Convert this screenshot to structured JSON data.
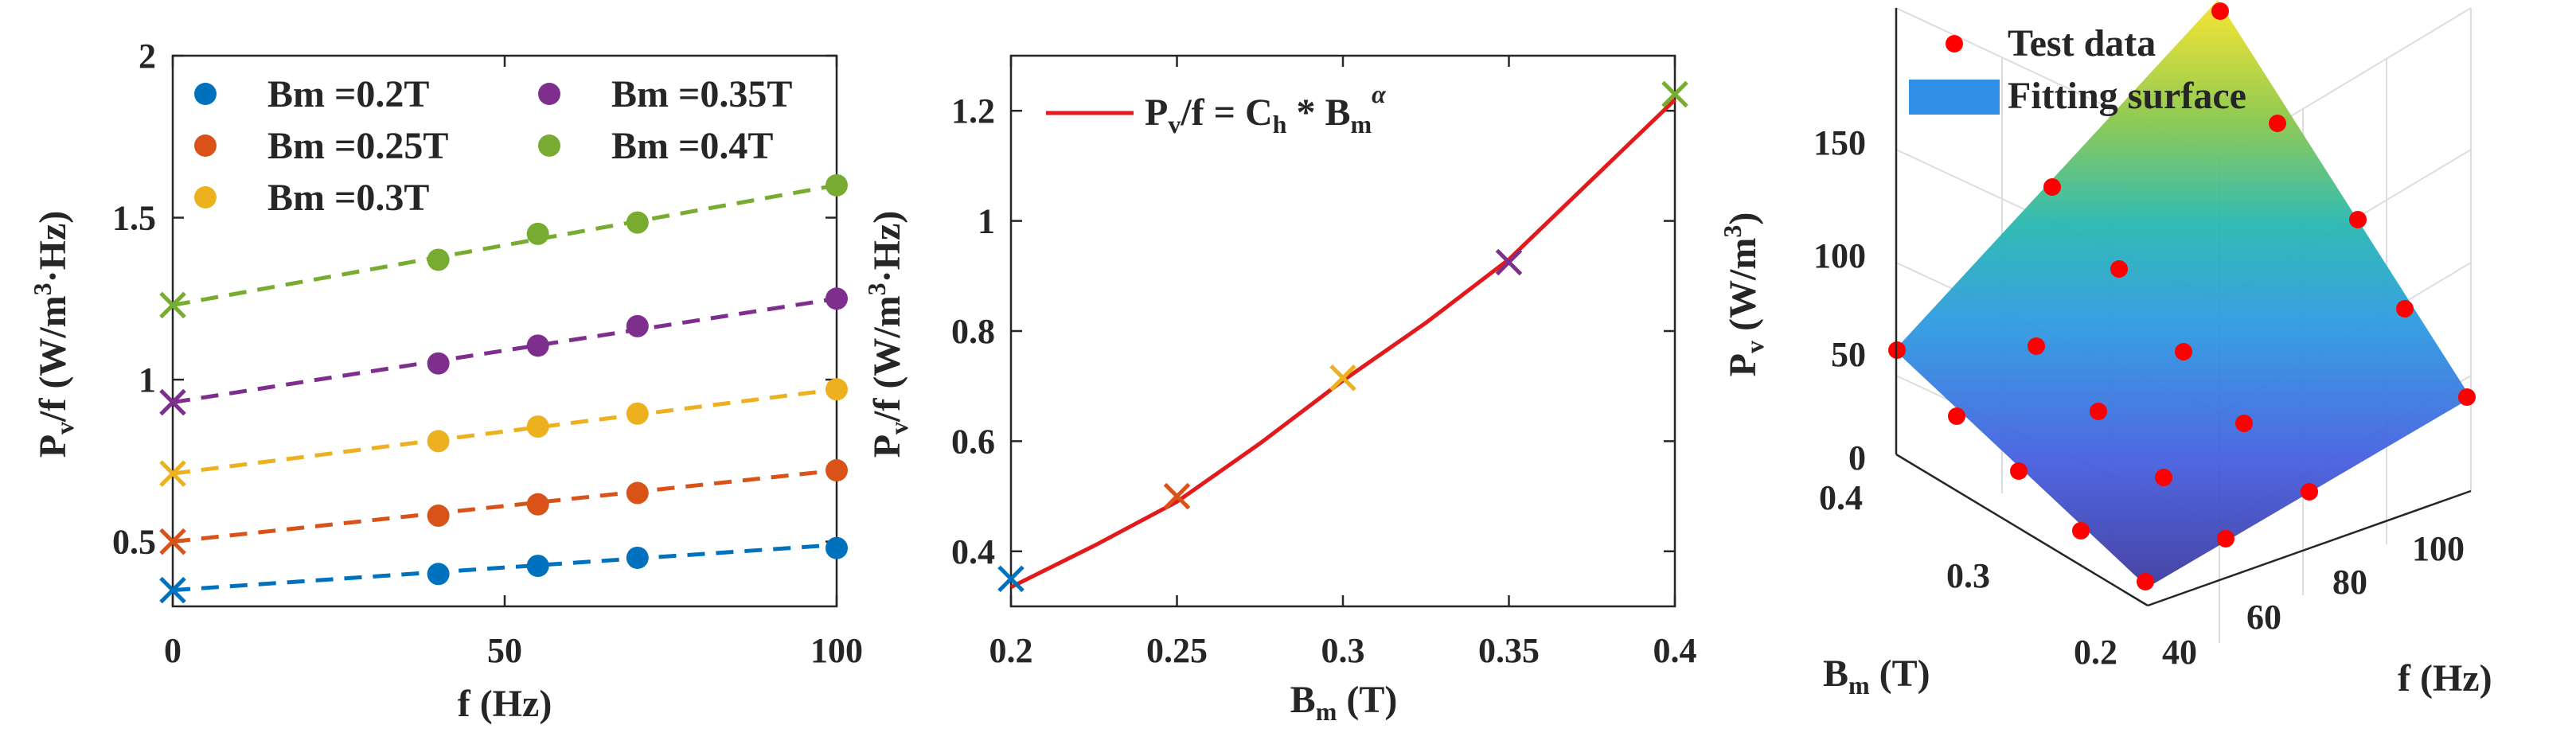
{
  "colors": {
    "bm02": "#0072BD",
    "bm025": "#D95319",
    "bm03": "#EDB120",
    "bm035": "#7E2F8E",
    "bm04": "#77AC30",
    "fit_line": "#E31A1C",
    "test_data": "#FF0000",
    "surface_patch": "#2F8FE6",
    "axis": "#262626"
  },
  "chart_data": [
    {
      "type": "scatter",
      "xlabel": "f (Hz)",
      "ylabel": "P_v/f (W/m^3·Hz)",
      "xlim": [
        0,
        100
      ],
      "ylim": [
        0.3,
        2
      ],
      "xticks": [
        "0",
        "50",
        "100"
      ],
      "yticks": [
        "0.5",
        "1",
        "1.5",
        "2"
      ],
      "legend_position": "top",
      "series": [
        {
          "name": "Bm =0.2T",
          "color": "#0072BD",
          "x": [
            40,
            55,
            70,
            100
          ],
          "values": [
            0.4,
            0.425,
            0.45,
            0.48
          ],
          "fit_intercept": 0.35,
          "fit_end": 0.49
        },
        {
          "name": "Bm =0.25T",
          "color": "#D95319",
          "x": [
            40,
            55,
            70,
            100
          ],
          "values": [
            0.58,
            0.615,
            0.65,
            0.72
          ],
          "fit_intercept": 0.5,
          "fit_end": 0.72
        },
        {
          "name": "Bm =0.3T",
          "color": "#EDB120",
          "x": [
            40,
            55,
            70,
            100
          ],
          "values": [
            0.81,
            0.855,
            0.895,
            0.97
          ],
          "fit_intercept": 0.71,
          "fit_end": 0.97
        },
        {
          "name": "Bm =0.35T",
          "color": "#7E2F8E",
          "x": [
            40,
            55,
            70,
            100
          ],
          "values": [
            1.05,
            1.105,
            1.165,
            1.25
          ],
          "fit_intercept": 0.93,
          "fit_end": 1.25
        },
        {
          "name": "Bm =0.4T",
          "color": "#77AC30",
          "x": [
            40,
            55,
            70,
            100
          ],
          "values": [
            1.37,
            1.45,
            1.485,
            1.6
          ],
          "fit_intercept": 1.23,
          "fit_end": 1.6
        }
      ]
    },
    {
      "type": "line",
      "xlabel": "B_m (T)",
      "ylabel": "P_v/f (W/m^3·Hz)",
      "xlim": [
        0.2,
        0.4
      ],
      "ylim": [
        0.3,
        1.3
      ],
      "xticks": [
        "0.2",
        "0.25",
        "0.3",
        "0.35",
        "0.4"
      ],
      "yticks": [
        "0.4",
        "0.6",
        "0.8",
        "1",
        "1.2"
      ],
      "legend": "P_v/f = C_h * B_m^α",
      "legend_position": "top-left",
      "series": [
        {
          "name": "P_v/f = C_h * B_m^α",
          "color": "#E31A1C",
          "x": [
            0.2,
            0.225,
            0.25,
            0.275,
            0.3,
            0.325,
            0.35,
            0.375,
            0.4
          ],
          "values": [
            0.335,
            0.41,
            0.49,
            0.596,
            0.71,
            0.815,
            0.93,
            1.075,
            1.22
          ]
        }
      ],
      "points": [
        {
          "x": 0.2,
          "y": 0.35,
          "color": "#0072BD"
        },
        {
          "x": 0.25,
          "y": 0.5,
          "color": "#D95319"
        },
        {
          "x": 0.3,
          "y": 0.715,
          "color": "#EDB120"
        },
        {
          "x": 0.35,
          "y": 0.925,
          "color": "#7E2F8E"
        },
        {
          "x": 0.4,
          "y": 1.23,
          "color": "#77AC30"
        }
      ]
    },
    {
      "type": "scatter",
      "subtype": "3d-surface",
      "xlabel": "f (Hz)",
      "ylabel": "B_m (T)",
      "zlabel": "P_v (W/m^3)",
      "xticks": [
        "40",
        "60",
        "80",
        "100"
      ],
      "yticks": [
        "0.2",
        "0.3",
        "0.4"
      ],
      "zticks": [
        "0",
        "50",
        "100",
        "150"
      ],
      "legend_position": "top",
      "legend": [
        "Test data",
        "Fitting surface"
      ]
    }
  ]
}
